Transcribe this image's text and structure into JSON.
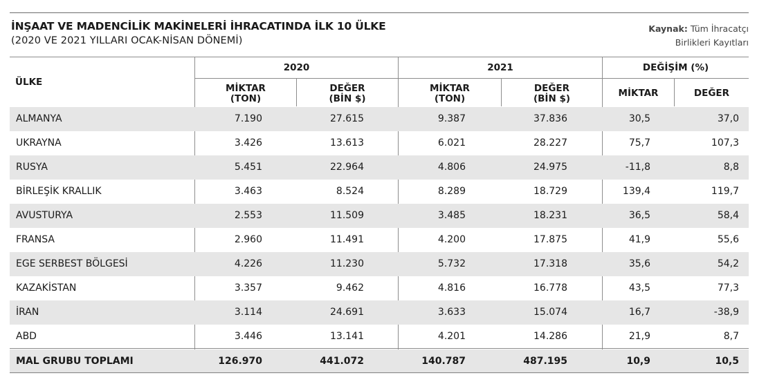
{
  "title": "İNŞAAT VE MADENCİLİK MAKİNELERİ İHRACATINDA İLK 10 ÜLKE",
  "subtitle": "(2020 VE 2021 YILLARI OCAK-NİSAN DÖNEMİ)",
  "source": {
    "label": "Kaynak:",
    "line1": "Tüm İhracatçı",
    "line2": "Birlikleri Kayıtları"
  },
  "headers": {
    "country": "ÜLKE",
    "year_2020": "2020",
    "year_2021": "2021",
    "change": "DEĞİŞİM (%)",
    "qty_line1": "MİKTAR",
    "qty_line2": "(TON)",
    "val_line1": "DEĞER",
    "val_line2": "(BİN $)",
    "chg_qty": "MİKTAR",
    "chg_val": "DEĞER"
  },
  "rows": [
    {
      "country": "ALMANYA",
      "qty_2020": "7.190",
      "val_2020": "27.615",
      "qty_2021": "9.387",
      "val_2021": "37.836",
      "chg_qty": "30,5",
      "chg_val": "37,0"
    },
    {
      "country": "UKRAYNA",
      "qty_2020": "3.426",
      "val_2020": "13.613",
      "qty_2021": "6.021",
      "val_2021": "28.227",
      "chg_qty": "75,7",
      "chg_val": "107,3"
    },
    {
      "country": "RUSYA",
      "qty_2020": "5.451",
      "val_2020": "22.964",
      "qty_2021": "4.806",
      "val_2021": "24.975",
      "chg_qty": "-11,8",
      "chg_val": "8,8"
    },
    {
      "country": "BİRLEŞİK KRALLIK",
      "qty_2020": "3.463",
      "val_2020": "8.524",
      "qty_2021": "8.289",
      "val_2021": "18.729",
      "chg_qty": "139,4",
      "chg_val": "119,7"
    },
    {
      "country": "AVUSTURYA",
      "qty_2020": "2.553",
      "val_2020": "11.509",
      "qty_2021": "3.485",
      "val_2021": "18.231",
      "chg_qty": "36,5",
      "chg_val": "58,4"
    },
    {
      "country": "FRANSA",
      "qty_2020": "2.960",
      "val_2020": "11.491",
      "qty_2021": "4.200",
      "val_2021": "17.875",
      "chg_qty": "41,9",
      "chg_val": "55,6"
    },
    {
      "country": "EGE SERBEST BÖLGESİ",
      "qty_2020": "4.226",
      "val_2020": "11.230",
      "qty_2021": "5.732",
      "val_2021": "17.318",
      "chg_qty": "35,6",
      "chg_val": "54,2"
    },
    {
      "country": "KAZAKİSTAN",
      "qty_2020": "3.357",
      "val_2020": "9.462",
      "qty_2021": "4.816",
      "val_2021": "16.778",
      "chg_qty": "43,5",
      "chg_val": "77,3"
    },
    {
      "country": "İRAN",
      "qty_2020": "3.114",
      "val_2020": "24.691",
      "qty_2021": "3.633",
      "val_2021": "15.074",
      "chg_qty": "16,7",
      "chg_val": "-38,9"
    },
    {
      "country": "ABD",
      "qty_2020": "3.446",
      "val_2020": "13.141",
      "qty_2021": "4.201",
      "val_2021": "14.286",
      "chg_qty": "21,9",
      "chg_val": "8,7"
    }
  ],
  "total": {
    "country": "MAL GRUBU TOPLAMI",
    "qty_2020": "126.970",
    "val_2020": "441.072",
    "qty_2021": "140.787",
    "val_2021": "487.195",
    "chg_qty": "10,9",
    "chg_val": "10,5"
  },
  "colors": {
    "shade": "#e6e6e6",
    "rule": "#8c8c8c",
    "text": "#1a1a1a"
  }
}
